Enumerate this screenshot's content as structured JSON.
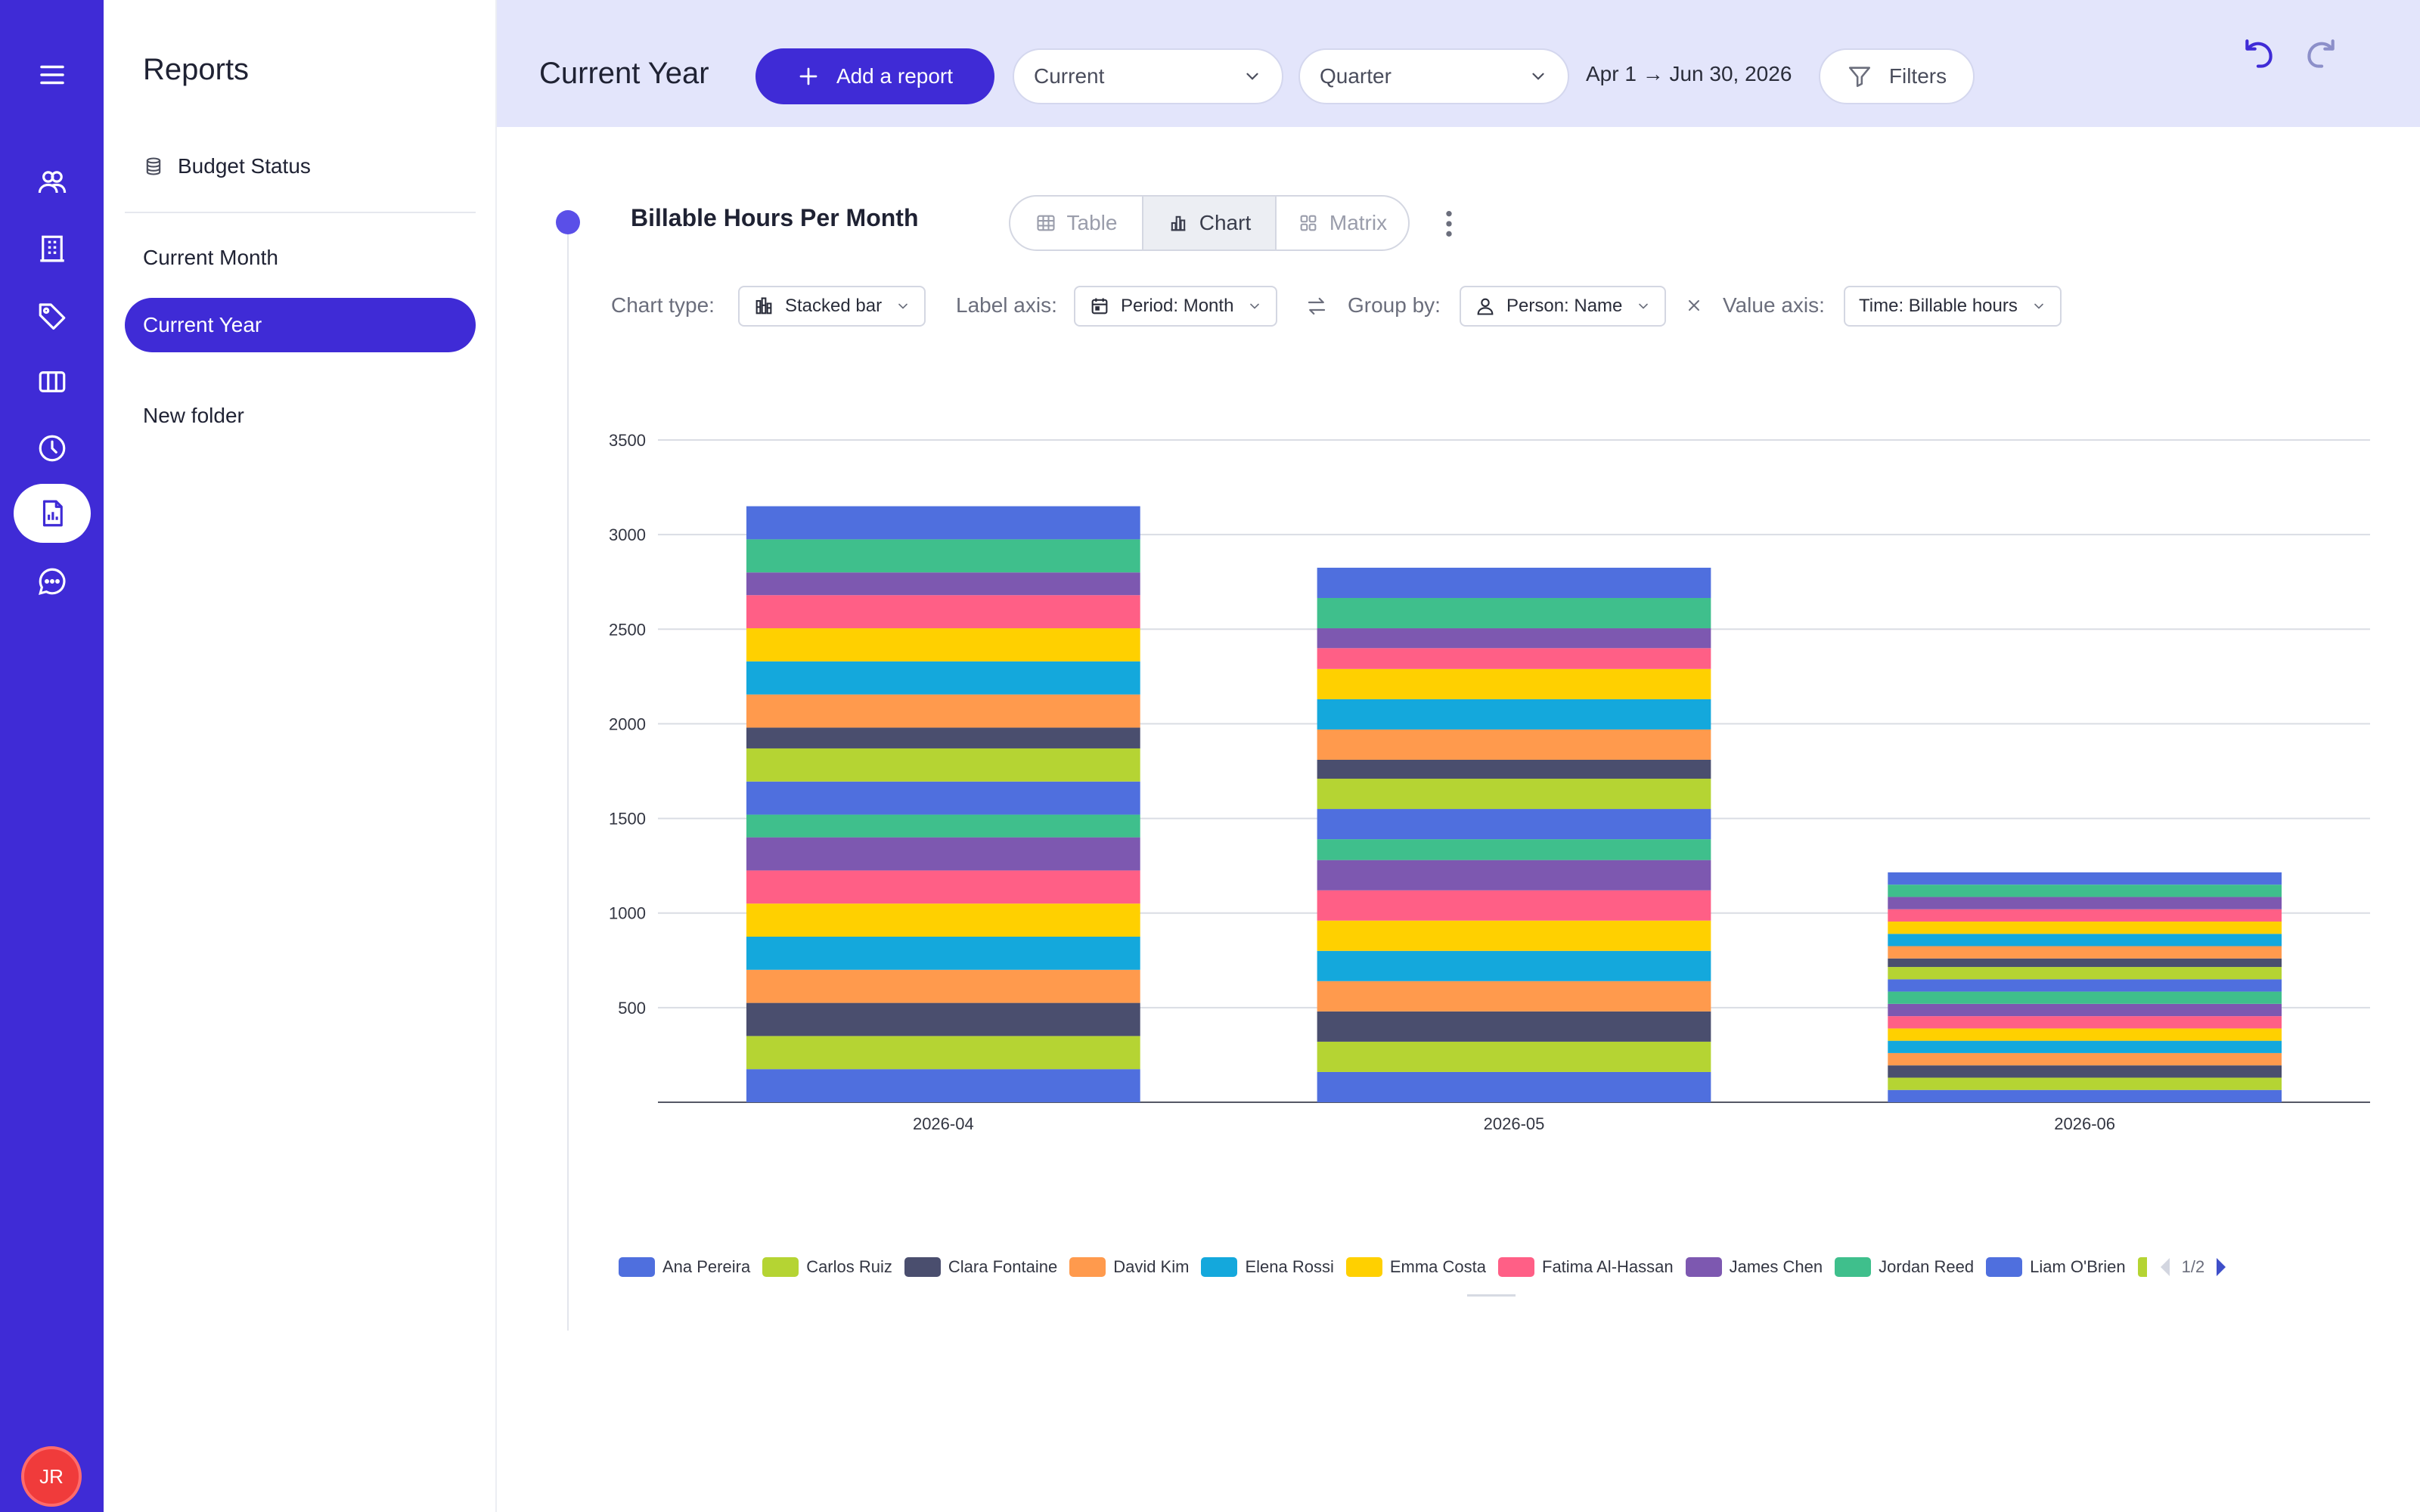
{
  "sidebar": {
    "title": "Reports",
    "items": [
      {
        "label": "Budget Status"
      },
      {
        "label": "Current Month"
      },
      {
        "label": "Current Year"
      },
      {
        "label": "New folder"
      }
    ],
    "active_index": 2
  },
  "rail": {
    "icons": [
      "menu-icon",
      "people-icon",
      "building-icon",
      "tag-icon",
      "columns-icon",
      "clock-icon",
      "report-icon",
      "chat-icon"
    ],
    "active_icon": "report-icon",
    "avatar_initials": "JR"
  },
  "header": {
    "title": "Current Year",
    "add_report_label": "Add a report",
    "period_select": "Current",
    "granularity_select": "Quarter",
    "date_range": "Apr 1 → Jun 30, 2026",
    "filters_label": "Filters"
  },
  "report": {
    "title": "Billable Hours Per Month",
    "views": [
      {
        "label": "Table"
      },
      {
        "label": "Chart"
      },
      {
        "label": "Matrix"
      }
    ],
    "active_view": "Chart",
    "controls": {
      "chart_type_label": "Chart type:",
      "chart_type_value": "Stacked bar",
      "label_axis_label": "Label axis:",
      "label_axis_value": "Period: Month",
      "group_by_label": "Group by:",
      "group_by_value": "Person: Name",
      "value_axis_label": "Value axis:",
      "value_axis_value": "Time: Billable hours"
    }
  },
  "chart_data": {
    "type": "bar",
    "stacked": true,
    "categories": [
      "2026-04",
      "2026-05",
      "2026-06"
    ],
    "ylim": [
      0,
      3500
    ],
    "yticks": [
      500,
      1000,
      1500,
      2000,
      2500,
      3000,
      3500
    ],
    "grid": true,
    "legend_position": "bottom",
    "legend_page": "1/2",
    "legend_visible": [
      "Ana Pereira",
      "Carlos Ruiz",
      "Clara Fontaine",
      "David Kim",
      "Elena Rossi",
      "Emma Costa",
      "Fatima Al-Hassan",
      "James Chen",
      "Jordan Reed",
      "Liam O'Brien"
    ],
    "series": [
      {
        "name": "Ana Pereira",
        "color": "#4f6fde",
        "values": [
          175,
          160,
          65
        ]
      },
      {
        "name": "Carlos Ruiz",
        "color": "#b5d433",
        "values": [
          175,
          160,
          65
        ]
      },
      {
        "name": "Clara Fontaine",
        "color": "#4a4e6e",
        "values": [
          175,
          160,
          65
        ]
      },
      {
        "name": "David Kim",
        "color": "#ff9a4d",
        "values": [
          175,
          160,
          65
        ]
      },
      {
        "name": "Elena Rossi",
        "color": "#14a8dc",
        "values": [
          175,
          160,
          65
        ]
      },
      {
        "name": "Emma Costa",
        "color": "#ffd000",
        "values": [
          175,
          160,
          65
        ]
      },
      {
        "name": "Fatima Al-Hassan",
        "color": "#ff5f86",
        "values": [
          175,
          160,
          65
        ]
      },
      {
        "name": "James Chen",
        "color": "#7d58b0",
        "values": [
          175,
          160,
          65
        ]
      },
      {
        "name": "Jordan Reed",
        "color": "#3fbf8c",
        "values": [
          120,
          110,
          65
        ]
      },
      {
        "name": "Liam O'Brien",
        "color": "#4f6fde",
        "values": [
          175,
          160,
          65
        ]
      },
      {
        "name": "",
        "color": "#b5d433",
        "values": [
          175,
          160,
          65
        ]
      },
      {
        "name": "",
        "color": "#4a4e6e",
        "values": [
          110,
          100,
          45
        ]
      },
      {
        "name": "",
        "color": "#ff9a4d",
        "values": [
          175,
          160,
          65
        ]
      },
      {
        "name": "",
        "color": "#14a8dc",
        "values": [
          175,
          160,
          65
        ]
      },
      {
        "name": "",
        "color": "#ffd000",
        "values": [
          175,
          160,
          65
        ]
      },
      {
        "name": "",
        "color": "#ff5f86",
        "values": [
          175,
          110,
          65
        ]
      },
      {
        "name": "",
        "color": "#7d58b0",
        "values": [
          120,
          105,
          65
        ]
      },
      {
        "name": "",
        "color": "#3fbf8c",
        "values": [
          175,
          160,
          65
        ]
      },
      {
        "name": "",
        "color": "#4f6fde",
        "values": [
          175,
          160,
          65
        ]
      }
    ]
  }
}
